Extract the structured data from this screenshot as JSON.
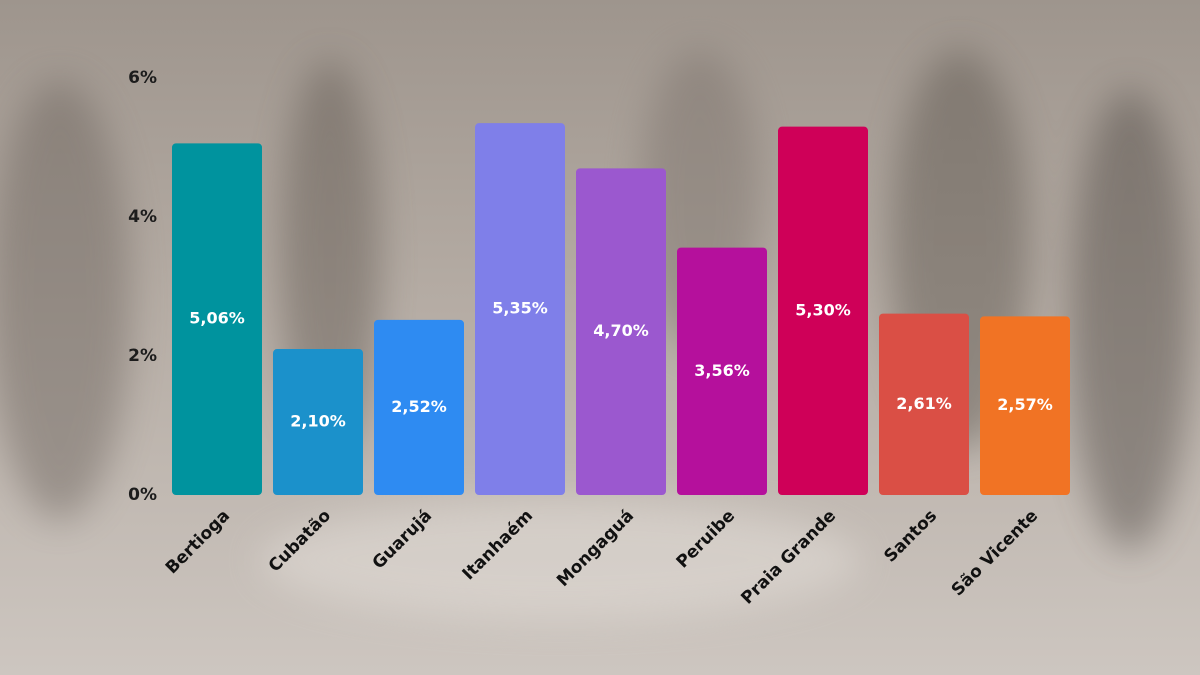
{
  "chart_data": {
    "type": "bar",
    "categories": [
      "Bertioga",
      "Cubatão",
      "Guarujá",
      "Itanhaém",
      "Mongaguá",
      "Peruibe",
      "Praia Grande",
      "Santos",
      "São Vicente"
    ],
    "values": [
      5.06,
      2.1,
      2.52,
      5.35,
      4.7,
      3.56,
      5.3,
      2.61,
      2.57
    ],
    "value_labels": [
      "5,06%",
      "2,10%",
      "2,52%",
      "5,35%",
      "4,70%",
      "3,56%",
      "5,30%",
      "2,61%",
      "2,57%"
    ],
    "colors": [
      "#00939e",
      "#1b91cb",
      "#2e8bf2",
      "#7f7fe9",
      "#9b58cf",
      "#b5109c",
      "#cf0058",
      "#da4f45",
      "#f17324"
    ],
    "ylim": [
      0,
      6
    ],
    "yticks": [
      {
        "value": 0,
        "label": "0%"
      },
      {
        "value": 2,
        "label": "2%"
      },
      {
        "value": 4,
        "label": "4%"
      },
      {
        "value": 6,
        "label": "6%"
      }
    ],
    "grid": false
  }
}
